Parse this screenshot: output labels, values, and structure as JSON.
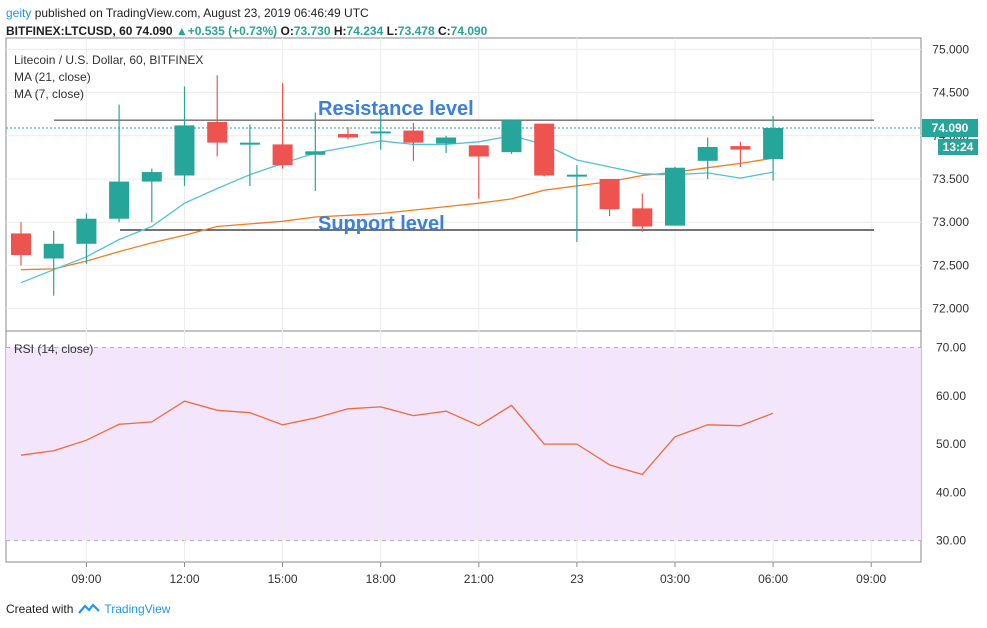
{
  "header": {
    "user": "geity",
    "published": "published on TradingView.com, August 23, 2019 06:46:49 UTC",
    "symbol": "BITFINEX:LTCUSD, 60",
    "last": "74.090",
    "change": "+0.535 (+0.73%)",
    "o_label": "O:",
    "o": "73.730",
    "h_label": "H:",
    "h": "74.234",
    "l_label": "L:",
    "l": "73.478",
    "c_label": "C:",
    "c": "74.090"
  },
  "legend": {
    "title": "Litecoin / U.S. Dollar, 60, BITFINEX",
    "ma21": "MA (21, close)",
    "ma7": "MA (7, close)",
    "rsi": "RSI (14, close)"
  },
  "annotations": {
    "resistance": "Resistance level",
    "support": "Support level"
  },
  "price_badge": {
    "price": "74.090",
    "countdown": "13:24"
  },
  "footer": {
    "created": "Created with",
    "brand": "TradingView"
  },
  "colors": {
    "up": "#26a69a",
    "down": "#ef5350",
    "ma21": "#f57c20",
    "ma7": "#4fc3d9",
    "rsi": "#f26b3a",
    "rsi_band": "#f3e5fb",
    "annotation": "#3d7fdc"
  },
  "chart_data": [
    {
      "type": "candlestick",
      "title": "Litecoin / U.S. Dollar, 60, BITFINEX",
      "y_ticks": [
        "72.000",
        "72.500",
        "73.000",
        "73.500",
        "74.000",
        "74.500",
        "75.000"
      ],
      "ylim": [
        71.88,
        75.05
      ],
      "x_ticks": [
        "09:00",
        "12:00",
        "15:00",
        "18:00",
        "21:00",
        "23",
        "03:00",
        "06:00",
        "09:00"
      ],
      "candles": [
        {
          "o": 72.87,
          "h": 73.0,
          "l": 72.5,
          "c": 72.62
        },
        {
          "o": 72.58,
          "h": 72.9,
          "l": 72.15,
          "c": 72.75
        },
        {
          "o": 72.75,
          "h": 73.1,
          "l": 72.52,
          "c": 73.04
        },
        {
          "o": 73.04,
          "h": 74.36,
          "l": 73.0,
          "c": 73.47
        },
        {
          "o": 73.47,
          "h": 73.62,
          "l": 73.0,
          "c": 73.58
        },
        {
          "o": 73.54,
          "h": 74.57,
          "l": 73.42,
          "c": 74.12
        },
        {
          "o": 74.16,
          "h": 74.7,
          "l": 73.76,
          "c": 73.92
        },
        {
          "o": 73.9,
          "h": 74.13,
          "l": 73.42,
          "c": 73.92
        },
        {
          "o": 73.9,
          "h": 74.61,
          "l": 73.62,
          "c": 73.66
        },
        {
          "o": 73.78,
          "h": 74.27,
          "l": 73.36,
          "c": 73.82
        },
        {
          "o": 74.02,
          "h": 74.1,
          "l": 73.96,
          "c": 73.98
        },
        {
          "o": 74.03,
          "h": 74.26,
          "l": 73.84,
          "c": 74.05
        },
        {
          "o": 74.06,
          "h": 74.15,
          "l": 73.71,
          "c": 73.92
        },
        {
          "o": 73.91,
          "h": 74.0,
          "l": 73.8,
          "c": 73.98
        },
        {
          "o": 73.89,
          "h": 73.89,
          "l": 73.27,
          "c": 73.76
        },
        {
          "o": 73.81,
          "h": 74.19,
          "l": 73.79,
          "c": 74.18
        },
        {
          "o": 74.14,
          "h": 74.14,
          "l": 73.53,
          "c": 73.54
        },
        {
          "o": 73.55,
          "h": 73.66,
          "l": 72.77,
          "c": 73.55
        },
        {
          "o": 73.5,
          "h": 73.5,
          "l": 73.07,
          "c": 73.15
        },
        {
          "o": 73.16,
          "h": 73.33,
          "l": 72.89,
          "c": 72.95
        },
        {
          "o": 72.96,
          "h": 73.64,
          "l": 72.96,
          "c": 73.63
        },
        {
          "o": 73.71,
          "h": 73.98,
          "l": 73.5,
          "c": 73.87
        },
        {
          "o": 73.88,
          "h": 73.93,
          "l": 73.64,
          "c": 73.84
        },
        {
          "o": 73.73,
          "h": 74.23,
          "l": 73.48,
          "c": 74.09
        }
      ],
      "series": [
        {
          "name": "MA (21, close)",
          "values": [
            72.45,
            72.46,
            72.55,
            72.66,
            72.76,
            72.85,
            72.95,
            72.98,
            73.01,
            73.06,
            73.08,
            73.1,
            73.14,
            73.18,
            73.22,
            73.27,
            73.37,
            73.42,
            73.47,
            73.54,
            73.58,
            73.63,
            73.68,
            73.74
          ]
        },
        {
          "name": "MA (7, close)",
          "values": [
            72.3,
            72.45,
            72.6,
            72.8,
            72.95,
            73.22,
            73.39,
            73.55,
            73.68,
            73.8,
            73.87,
            73.94,
            73.9,
            73.9,
            73.93,
            74.0,
            73.9,
            73.72,
            73.64,
            73.56,
            73.55,
            73.57,
            73.51,
            73.58
          ]
        }
      ],
      "levels": [
        {
          "name": "Resistance level",
          "value": 74.18
        },
        {
          "name": "Support level",
          "value": 72.91
        }
      ],
      "current_price": 74.09
    },
    {
      "type": "line",
      "title": "RSI (14, close)",
      "y_ticks": [
        "30.00",
        "40.00",
        "50.00",
        "60.00",
        "70.00"
      ],
      "ylim": [
        26.0,
        73.0
      ],
      "band": [
        30,
        70
      ],
      "series": [
        {
          "name": "RSI (14, close)",
          "values": [
            47.7,
            48.6,
            50.8,
            54.1,
            54.6,
            58.9,
            57.0,
            56.5,
            54.0,
            55.4,
            57.3,
            57.7,
            55.9,
            56.8,
            53.8,
            58.0,
            50.0,
            50.0,
            45.7,
            43.7,
            51.5,
            54.0,
            53.8,
            56.4
          ]
        }
      ]
    }
  ]
}
